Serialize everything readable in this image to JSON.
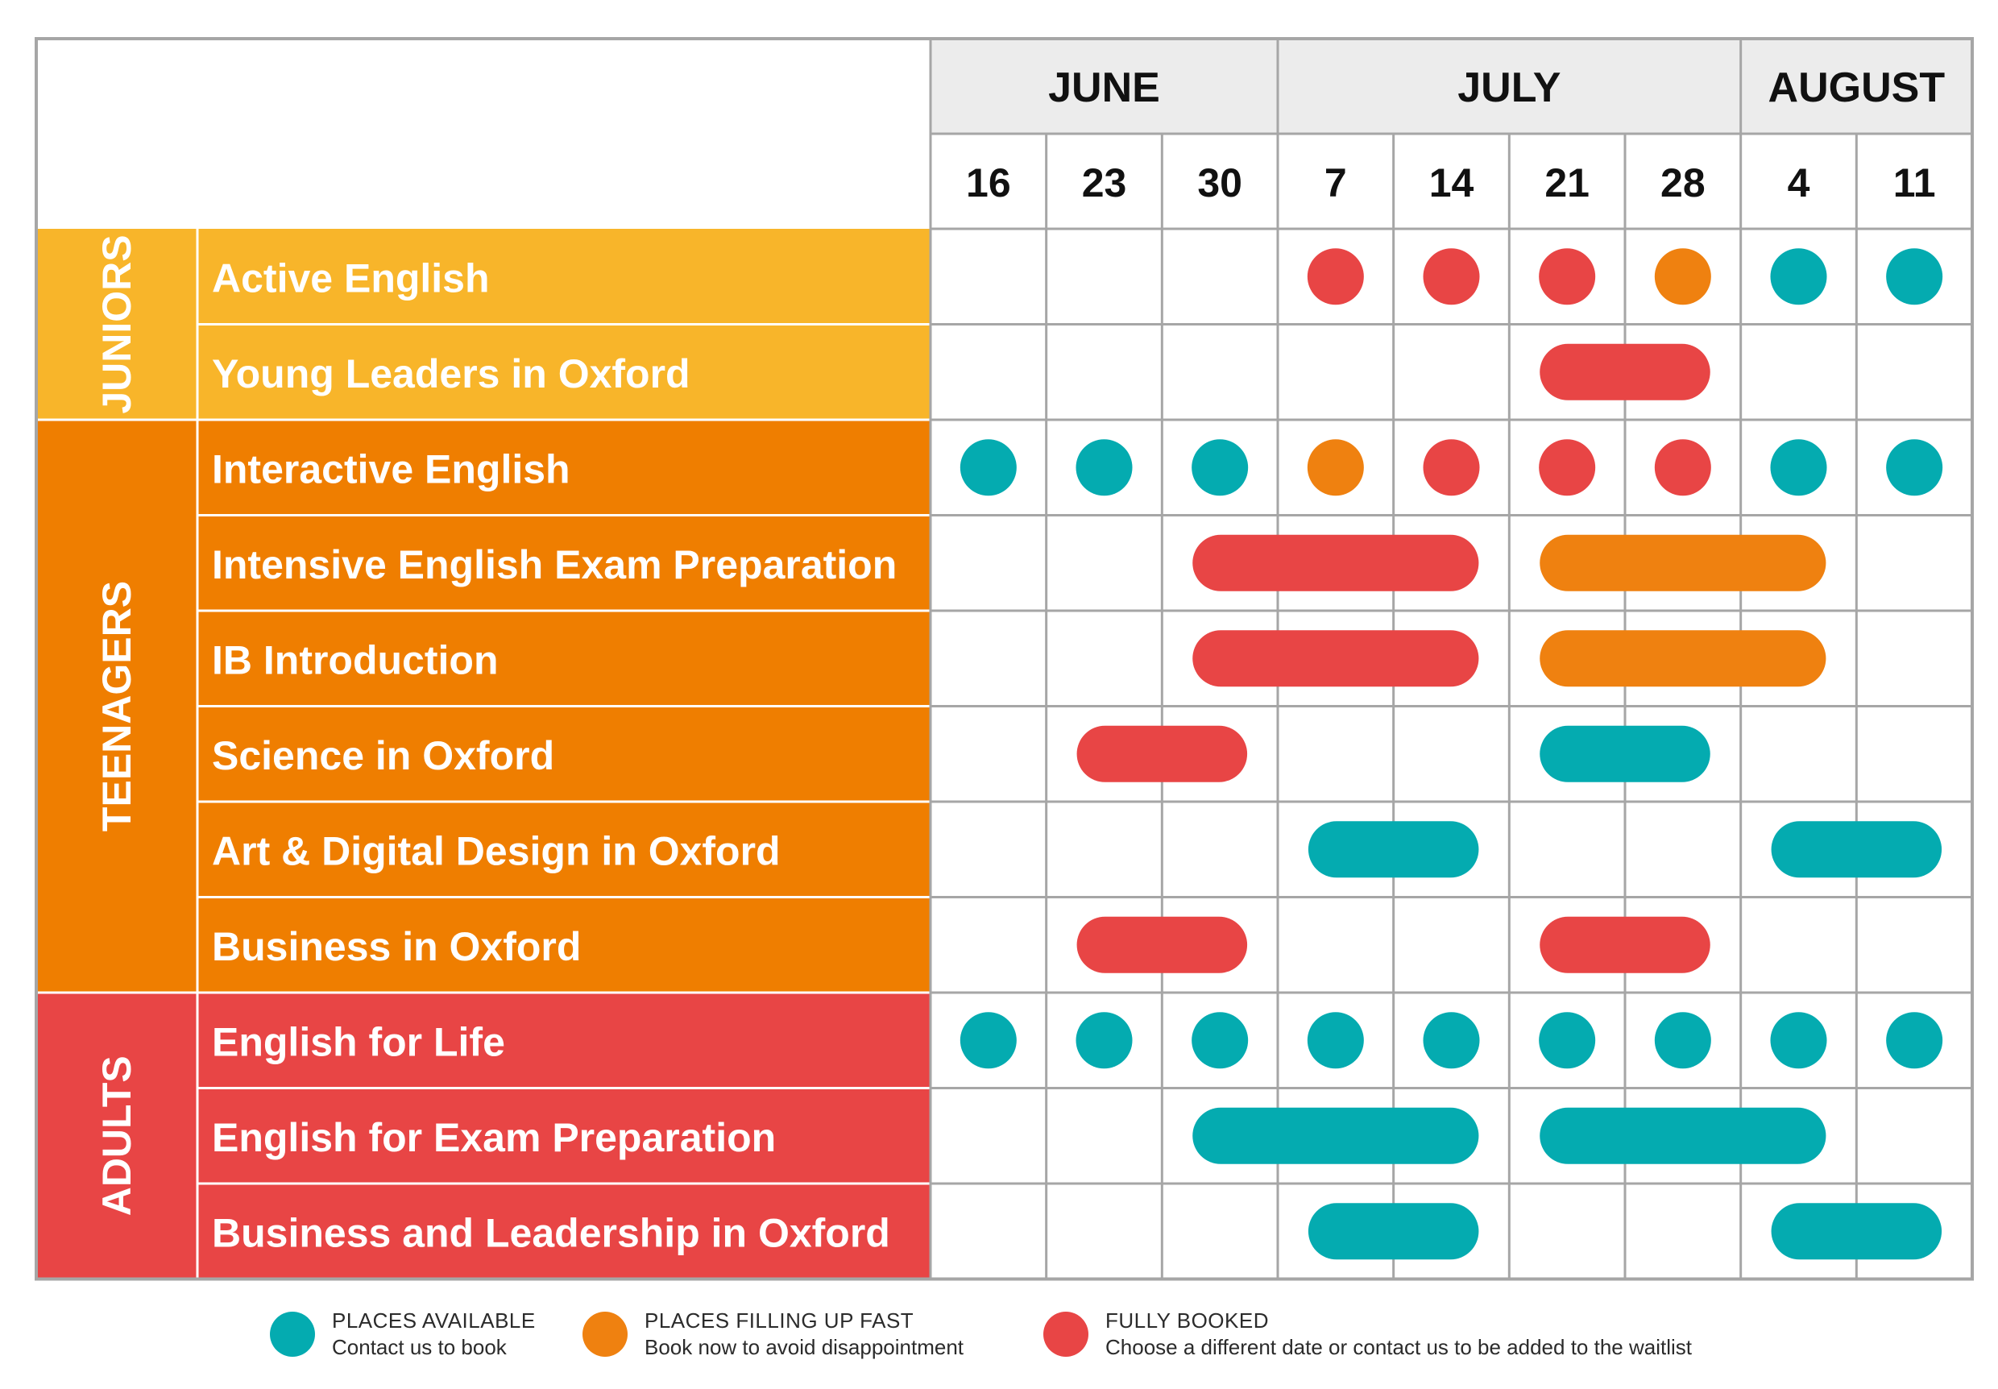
{
  "months": [
    {
      "label": "JUNE",
      "span": 3
    },
    {
      "label": "JULY",
      "span": 4
    },
    {
      "label": "AUGUST",
      "span": 2
    }
  ],
  "weeks": [
    "16",
    "23",
    "30",
    "7",
    "14",
    "21",
    "28",
    "4",
    "11"
  ],
  "colors": {
    "available": "#04abb0",
    "filling": "#ef8110",
    "booked": "#e84545",
    "juniors": "#f8b52a",
    "teenagers": "#ef7e00",
    "adults": "#e84545",
    "header_bg": "#ececec",
    "grid": "#a6a6a6"
  },
  "groups": [
    {
      "label": "JUNIORS",
      "color_key": "juniors",
      "courses": [
        {
          "name": "Active English",
          "items": [
            {
              "from": 3,
              "to": 3,
              "status": "booked"
            },
            {
              "from": 4,
              "to": 4,
              "status": "booked"
            },
            {
              "from": 5,
              "to": 5,
              "status": "booked"
            },
            {
              "from": 6,
              "to": 6,
              "status": "filling"
            },
            {
              "from": 7,
              "to": 7,
              "status": "available"
            },
            {
              "from": 8,
              "to": 8,
              "status": "available"
            }
          ]
        },
        {
          "name": "Young Leaders in Oxford",
          "items": [
            {
              "from": 5,
              "to": 6,
              "status": "booked"
            }
          ]
        }
      ]
    },
    {
      "label": "TEENAGERS",
      "color_key": "teenagers",
      "courses": [
        {
          "name": "Interactive English",
          "items": [
            {
              "from": 0,
              "to": 0,
              "status": "available"
            },
            {
              "from": 1,
              "to": 1,
              "status": "available"
            },
            {
              "from": 2,
              "to": 2,
              "status": "available"
            },
            {
              "from": 3,
              "to": 3,
              "status": "filling"
            },
            {
              "from": 4,
              "to": 4,
              "status": "booked"
            },
            {
              "from": 5,
              "to": 5,
              "status": "booked"
            },
            {
              "from": 6,
              "to": 6,
              "status": "booked"
            },
            {
              "from": 7,
              "to": 7,
              "status": "available"
            },
            {
              "from": 8,
              "to": 8,
              "status": "available"
            }
          ]
        },
        {
          "name": "Intensive English Exam Preparation",
          "items": [
            {
              "from": 2,
              "to": 4,
              "status": "booked"
            },
            {
              "from": 5,
              "to": 7,
              "status": "filling"
            }
          ]
        },
        {
          "name": "IB Introduction",
          "items": [
            {
              "from": 2,
              "to": 4,
              "status": "booked"
            },
            {
              "from": 5,
              "to": 7,
              "status": "filling"
            }
          ]
        },
        {
          "name": "Science in Oxford",
          "items": [
            {
              "from": 1,
              "to": 2,
              "status": "booked"
            },
            {
              "from": 5,
              "to": 6,
              "status": "available"
            }
          ]
        },
        {
          "name": "Art & Digital Design in Oxford",
          "items": [
            {
              "from": 3,
              "to": 4,
              "status": "available"
            },
            {
              "from": 7,
              "to": 8,
              "status": "available"
            }
          ]
        },
        {
          "name": "Business in Oxford",
          "items": [
            {
              "from": 1,
              "to": 2,
              "status": "booked"
            },
            {
              "from": 5,
              "to": 6,
              "status": "booked"
            }
          ]
        }
      ]
    },
    {
      "label": "ADULTS",
      "color_key": "adults",
      "courses": [
        {
          "name": "English for Life",
          "items": [
            {
              "from": 0,
              "to": 0,
              "status": "available"
            },
            {
              "from": 1,
              "to": 1,
              "status": "available"
            },
            {
              "from": 2,
              "to": 2,
              "status": "available"
            },
            {
              "from": 3,
              "to": 3,
              "status": "available"
            },
            {
              "from": 4,
              "to": 4,
              "status": "available"
            },
            {
              "from": 5,
              "to": 5,
              "status": "available"
            },
            {
              "from": 6,
              "to": 6,
              "status": "available"
            },
            {
              "from": 7,
              "to": 7,
              "status": "available"
            },
            {
              "from": 8,
              "to": 8,
              "status": "available"
            }
          ]
        },
        {
          "name": "English for Exam Preparation",
          "items": [
            {
              "from": 2,
              "to": 4,
              "status": "available"
            },
            {
              "from": 5,
              "to": 7,
              "status": "available"
            }
          ]
        },
        {
          "name": "Business and Leadership in Oxford",
          "items": [
            {
              "from": 3,
              "to": 4,
              "status": "available"
            },
            {
              "from": 7,
              "to": 8,
              "status": "available"
            }
          ]
        }
      ]
    }
  ],
  "legend": {
    "available": {
      "title": "PLACES AVAILABLE",
      "subtitle": "Contact us to book"
    },
    "filling": {
      "title": "PLACES FILLING UP FAST",
      "subtitle": "Book now to avoid disappointment"
    },
    "booked": {
      "title": "FULLY BOOKED",
      "subtitle": "Choose a different date or contact us to be added to the waitlist"
    }
  }
}
